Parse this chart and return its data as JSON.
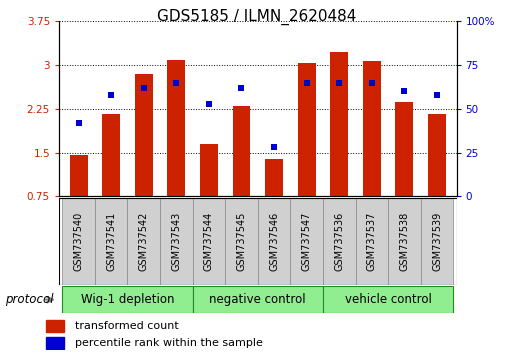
{
  "title": "GDS5185 / ILMN_2620484",
  "samples": [
    "GSM737540",
    "GSM737541",
    "GSM737542",
    "GSM737543",
    "GSM737544",
    "GSM737545",
    "GSM737546",
    "GSM737547",
    "GSM737536",
    "GSM737537",
    "GSM737538",
    "GSM737539"
  ],
  "bar_values": [
    1.46,
    2.17,
    2.85,
    3.08,
    1.64,
    2.3,
    1.4,
    3.03,
    3.22,
    3.07,
    2.36,
    2.17
  ],
  "dot_values": [
    42,
    58,
    62,
    65,
    53,
    62,
    28,
    65,
    65,
    65,
    60,
    58
  ],
  "ylim_left": [
    0.75,
    3.75
  ],
  "ylim_right": [
    0,
    100
  ],
  "yticks_left": [
    0.75,
    1.5,
    2.25,
    3.0,
    3.75
  ],
  "ytick_labels_left": [
    "0.75",
    "1.5",
    "2.25",
    "3",
    "3.75"
  ],
  "yticks_right": [
    0,
    25,
    50,
    75,
    100
  ],
  "ytick_labels_right": [
    "0",
    "25",
    "50",
    "75",
    "100%"
  ],
  "bar_color": "#cc2200",
  "dot_color": "#0000cc",
  "groups": [
    {
      "label": "Wig-1 depletion",
      "start": 0,
      "end": 4
    },
    {
      "label": "negative control",
      "start": 4,
      "end": 8
    },
    {
      "label": "vehicle control",
      "start": 8,
      "end": 12
    }
  ],
  "group_color": "#90ee90",
  "group_border_color": "#228B22",
  "protocol_label": "protocol",
  "legend_items": [
    {
      "color": "#cc2200",
      "label": "transformed count"
    },
    {
      "color": "#0000cc",
      "label": "percentile rank within the sample"
    }
  ],
  "left_tick_color": "#cc2200",
  "right_tick_color": "#0000cc",
  "bar_width": 0.55,
  "tick_label_fontsize": 7.5,
  "title_fontsize": 11,
  "group_label_fontsize": 8.5,
  "legend_fontsize": 8,
  "sample_label_fontsize": 7
}
